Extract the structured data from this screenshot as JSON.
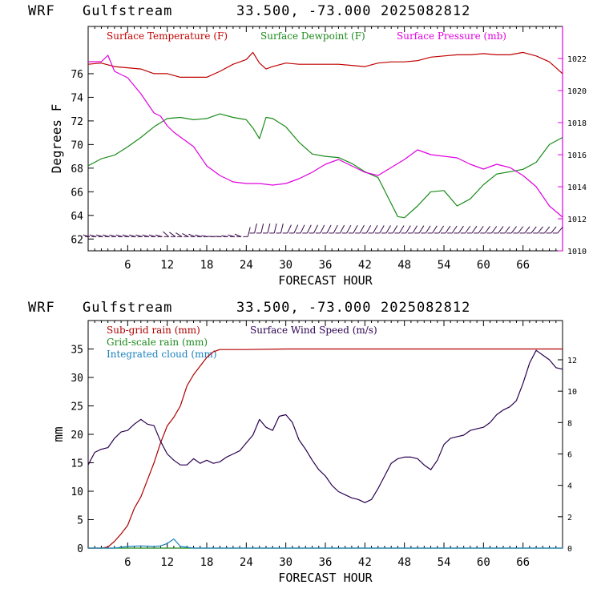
{
  "header": {
    "model": "WRF",
    "site": "Gulfstream",
    "coords": "33.500, -73.000",
    "init": "2025082812"
  },
  "colors": {
    "temperature": "#c00000",
    "dewpoint": "#1a8a1a",
    "pressure": "#e000e0",
    "subgrid_rain": "#b00000",
    "gridscale_rain": "#1a8a1a",
    "cloud": "#1a80c0",
    "wind_speed": "#2a0050",
    "wind_barbs": "#3a0a4a"
  },
  "chart_data": [
    {
      "type": "line",
      "title": "",
      "xlabel": "FORECAST HOUR",
      "ylabel": "Degrees F",
      "y2label": "",
      "xlim": [
        0,
        72
      ],
      "ylim": [
        61,
        80
      ],
      "y2lim": [
        1010,
        1024
      ],
      "x_ticks": [
        6,
        12,
        18,
        24,
        30,
        36,
        42,
        48,
        54,
        60,
        66
      ],
      "x_tick_labels": [
        "6",
        "12",
        "18",
        "24",
        "30",
        "36",
        "42",
        "48",
        "54",
        "60",
        "66"
      ],
      "y_ticks": [
        62,
        64,
        66,
        68,
        70,
        72,
        74,
        76
      ],
      "y_tick_labels": [
        "62",
        "64",
        "66",
        "68",
        "70",
        "72",
        "74",
        "76"
      ],
      "y2_ticks": [
        1010,
        1012,
        1014,
        1016,
        1018,
        1020,
        1022
      ],
      "y2_tick_labels": [
        "1010",
        "1012",
        "1014",
        "1016",
        "1018",
        "1020",
        "1022"
      ],
      "legend": [
        "Surface Temperature (F)",
        "Surface Dewpoint (F)",
        "Surface Pressure (mb)"
      ],
      "series": [
        {
          "name": "Surface Temperature (F)",
          "axis": "left",
          "x": [
            0,
            2,
            4,
            6,
            8,
            10,
            12,
            14,
            16,
            18,
            20,
            22,
            24,
            25,
            26,
            27,
            28,
            30,
            32,
            34,
            36,
            38,
            40,
            42,
            44,
            46,
            48,
            50,
            52,
            54,
            56,
            58,
            60,
            62,
            64,
            66,
            68,
            70,
            72
          ],
          "y": [
            76.8,
            76.9,
            76.6,
            76.5,
            76.4,
            76.0,
            76.0,
            75.7,
            75.7,
            75.7,
            76.2,
            76.8,
            77.2,
            77.8,
            76.9,
            76.4,
            76.6,
            76.9,
            76.8,
            76.8,
            76.8,
            76.8,
            76.7,
            76.6,
            76.9,
            77.0,
            77.0,
            77.1,
            77.4,
            77.5,
            77.6,
            77.6,
            77.7,
            77.6,
            77.6,
            77.8,
            77.5,
            77.0,
            76.0
          ]
        },
        {
          "name": "Surface Dewpoint (F)",
          "axis": "left",
          "x": [
            0,
            2,
            4,
            6,
            8,
            10,
            12,
            14,
            16,
            18,
            20,
            22,
            24,
            25,
            26,
            27,
            28,
            30,
            32,
            34,
            36,
            38,
            40,
            42,
            44,
            46,
            47,
            48,
            50,
            52,
            54,
            56,
            58,
            60,
            62,
            64,
            66,
            68,
            70,
            72
          ],
          "y": [
            68.2,
            68.8,
            69.1,
            69.8,
            70.6,
            71.5,
            72.2,
            72.3,
            72.1,
            72.2,
            72.6,
            72.3,
            72.1,
            71.4,
            70.5,
            72.3,
            72.2,
            71.5,
            70.2,
            69.2,
            69.0,
            68.9,
            68.4,
            67.7,
            67.2,
            65.0,
            63.9,
            63.8,
            64.8,
            66.0,
            66.1,
            64.8,
            65.4,
            66.6,
            67.5,
            67.7,
            67.9,
            68.5,
            70.0,
            70.6
          ]
        },
        {
          "name": "Surface Pressure (mb)",
          "axis": "right",
          "x": [
            0,
            2,
            3,
            4,
            6,
            8,
            10,
            11,
            12,
            13,
            14,
            16,
            18,
            20,
            22,
            24,
            26,
            28,
            30,
            32,
            34,
            36,
            38,
            40,
            42,
            44,
            46,
            48,
            50,
            52,
            54,
            56,
            58,
            60,
            62,
            64,
            66,
            68,
            70,
            72
          ],
          "y": [
            1021.8,
            1021.8,
            1022.2,
            1021.2,
            1020.8,
            1019.8,
            1018.6,
            1018.4,
            1017.8,
            1017.4,
            1017.1,
            1016.5,
            1015.3,
            1014.7,
            1014.3,
            1014.2,
            1014.2,
            1014.1,
            1014.2,
            1014.5,
            1014.9,
            1015.4,
            1015.7,
            1015.3,
            1014.9,
            1014.7,
            1015.2,
            1015.7,
            1016.3,
            1016.0,
            1015.9,
            1015.8,
            1015.4,
            1015.1,
            1015.4,
            1015.2,
            1014.7,
            1014.0,
            1012.8,
            1012.1
          ]
        }
      ]
    },
    {
      "type": "line",
      "title": "",
      "xlabel": "FORECAST HOUR",
      "ylabel": "mm",
      "y2label": "",
      "xlim": [
        0,
        72
      ],
      "ylim": [
        0,
        40
      ],
      "y2lim": [
        0,
        14.5
      ],
      "x_ticks": [
        6,
        12,
        18,
        24,
        30,
        36,
        42,
        48,
        54,
        60,
        66
      ],
      "x_tick_labels": [
        "6",
        "12",
        "18",
        "24",
        "30",
        "36",
        "42",
        "48",
        "54",
        "60",
        "66"
      ],
      "y_ticks": [
        0,
        5,
        10,
        15,
        20,
        25,
        30,
        35
      ],
      "y_tick_labels": [
        "0",
        "5",
        "10",
        "15",
        "20",
        "25",
        "30",
        "35"
      ],
      "y2_ticks": [
        0,
        2,
        4,
        6,
        8,
        10,
        12
      ],
      "y2_tick_labels": [
        "0",
        "2",
        "4",
        "6",
        "8",
        "10",
        "12"
      ],
      "legend": [
        "Sub-grid rain (mm)",
        "Grid-scale rain (mm)",
        "Integrated cloud (mm)",
        "Surface Wind Speed (m/s)"
      ],
      "series": [
        {
          "name": "Sub-grid rain (mm)",
          "axis": "left",
          "x": [
            0,
            2,
            3,
            4,
            5,
            6,
            7,
            8,
            9,
            10,
            11,
            12,
            13,
            14,
            15,
            16,
            17,
            18,
            19,
            20,
            24,
            30,
            36,
            42,
            48,
            54,
            60,
            66,
            72
          ],
          "y": [
            0,
            0,
            0.2,
            1.2,
            2.5,
            4.0,
            7.0,
            9.0,
            12.0,
            15.0,
            18.5,
            21.5,
            23.0,
            25.0,
            28.5,
            30.5,
            32.0,
            33.5,
            34.5,
            34.9,
            34.9,
            35.0,
            35.0,
            35.0,
            35.0,
            35.0,
            35.0,
            35.0,
            35.0
          ]
        },
        {
          "name": "Grid-scale rain (mm)",
          "axis": "left",
          "x": [
            0,
            72
          ],
          "y": [
            0,
            0
          ]
        },
        {
          "name": "Integrated cloud (mm)",
          "axis": "left",
          "x": [
            0,
            4,
            6,
            8,
            10,
            11,
            12,
            13,
            14,
            16,
            20,
            72
          ],
          "y": [
            0,
            0,
            0.3,
            0.4,
            0.3,
            0.4,
            0.8,
            1.6,
            0.3,
            0,
            0,
            0
          ]
        },
        {
          "name": "Surface Wind Speed (m/s)",
          "axis": "right",
          "x": [
            0,
            1,
            2,
            3,
            4,
            5,
            6,
            7,
            8,
            9,
            10,
            11,
            12,
            13,
            14,
            15,
            16,
            17,
            18,
            19,
            20,
            21,
            22,
            23,
            24,
            25,
            26,
            27,
            28,
            29,
            30,
            31,
            32,
            33,
            34,
            35,
            36,
            37,
            38,
            39,
            40,
            41,
            42,
            43,
            44,
            45,
            46,
            47,
            48,
            49,
            50,
            51,
            52,
            53,
            54,
            55,
            56,
            57,
            58,
            59,
            60,
            61,
            62,
            63,
            64,
            65,
            66,
            67,
            68,
            69,
            70,
            71,
            72
          ],
          "y": [
            5.3,
            6.1,
            6.3,
            6.4,
            7.0,
            7.4,
            7.5,
            7.9,
            8.2,
            7.9,
            7.8,
            6.8,
            6.0,
            5.6,
            5.3,
            5.3,
            5.7,
            5.4,
            5.6,
            5.4,
            5.5,
            5.8,
            6.0,
            6.2,
            6.7,
            7.2,
            8.2,
            7.7,
            7.5,
            8.4,
            8.5,
            8.0,
            6.9,
            6.3,
            5.6,
            5.0,
            4.6,
            4.0,
            3.6,
            3.4,
            3.2,
            3.1,
            2.9,
            3.1,
            3.8,
            4.6,
            5.4,
            5.7,
            5.8,
            5.8,
            5.7,
            5.3,
            5.0,
            5.6,
            6.6,
            7.0,
            7.1,
            7.2,
            7.5,
            7.6,
            7.7,
            8.0,
            8.5,
            8.8,
            9.0,
            9.4,
            10.5,
            11.8,
            12.6,
            12.3,
            12.0,
            11.5,
            11.4
          ]
        }
      ]
    }
  ]
}
